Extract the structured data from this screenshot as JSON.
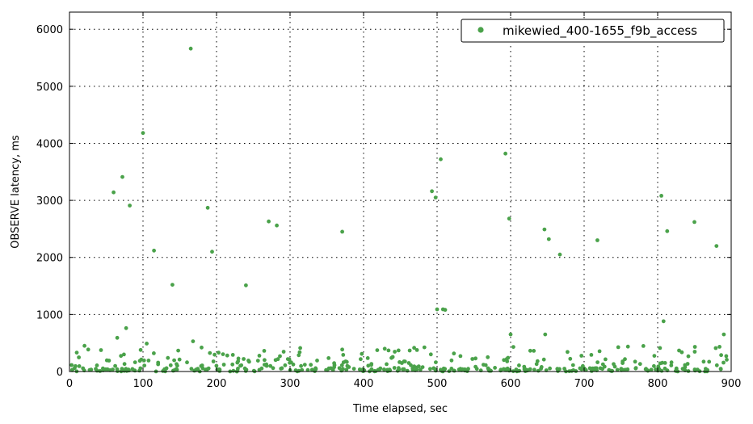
{
  "chart_data": {
    "type": "scatter",
    "title": "",
    "xlabel": "Time elapsed, sec",
    "ylabel": "OBSERVE latency, ms",
    "xlim": [
      0,
      900
    ],
    "ylim": [
      0,
      6300
    ],
    "xticks": [
      0,
      100,
      200,
      300,
      400,
      500,
      600,
      700,
      800,
      900
    ],
    "yticks": [
      0,
      1000,
      2000,
      3000,
      4000,
      5000,
      6000
    ],
    "grid": true,
    "legend_position": "top-right",
    "series": [
      {
        "name": "mikewied_400-1655_f9b_access",
        "color": "#4aa24a",
        "outliers": [
          [
            165,
            5660
          ],
          [
            100,
            4180
          ],
          [
            72,
            3410
          ],
          [
            60,
            3140
          ],
          [
            82,
            2910
          ],
          [
            188,
            2870
          ],
          [
            115,
            2120
          ],
          [
            194,
            2100
          ],
          [
            140,
            1520
          ],
          [
            240,
            1510
          ],
          [
            271,
            2630
          ],
          [
            282,
            2560
          ],
          [
            371,
            2450
          ],
          [
            65,
            590
          ],
          [
            77,
            760
          ],
          [
            105,
            490
          ],
          [
            168,
            530
          ],
          [
            493,
            3160
          ],
          [
            498,
            3050
          ],
          [
            505,
            3720
          ],
          [
            500,
            1090
          ],
          [
            508,
            1090
          ],
          [
            511,
            1080
          ],
          [
            593,
            3820
          ],
          [
            598,
            2680
          ],
          [
            600,
            650
          ],
          [
            646,
            2490
          ],
          [
            652,
            2320
          ],
          [
            667,
            2050
          ],
          [
            647,
            650
          ],
          [
            718,
            2300
          ],
          [
            805,
            3080
          ],
          [
            813,
            2460
          ],
          [
            850,
            2620
          ],
          [
            880,
            2200
          ],
          [
            808,
            880
          ],
          [
            890,
            650
          ]
        ]
      }
    ]
  }
}
